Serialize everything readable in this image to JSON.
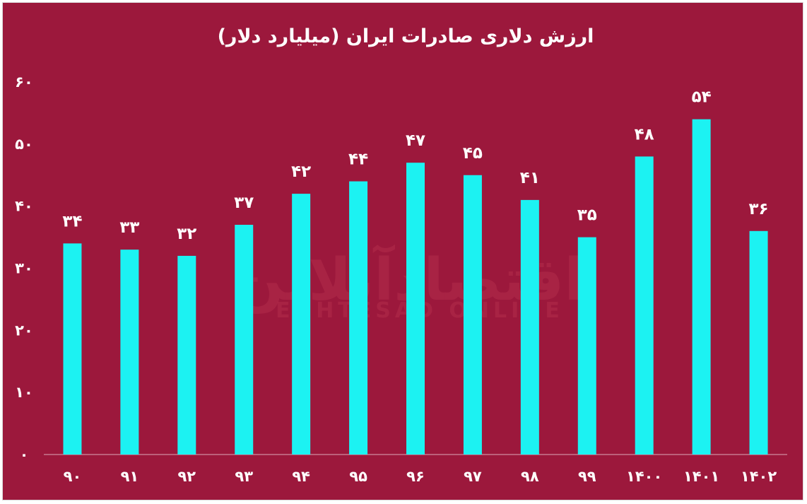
{
  "chart_data": {
    "type": "bar",
    "title": "ارزش دلاری صادرات ایران (میلیارد دلار)",
    "categories": [
      "۹۰",
      "۹۱",
      "۹۲",
      "۹۳",
      "۹۴",
      "۹۵",
      "۹۶",
      "۹۷",
      "۹۸",
      "۹۹",
      "۱۴۰۰",
      "۱۴۰۱",
      "۱۴۰۲"
    ],
    "values": [
      34,
      33,
      32,
      37,
      42,
      44,
      47,
      45,
      41,
      35,
      48,
      54,
      36
    ],
    "value_labels": [
      "۳۴",
      "۳۳",
      "۳۲",
      "۳۷",
      "۴۲",
      "۴۴",
      "۴۷",
      "۴۵",
      "۴۱",
      "۳۵",
      "۴۸",
      "۵۴",
      "۳۶"
    ],
    "ylim": [
      0,
      60
    ],
    "yticks": [
      0,
      10,
      20,
      30,
      40,
      50,
      60
    ],
    "ytick_labels": [
      "۰",
      "۱۰",
      "۲۰",
      "۳۰",
      "۴۰",
      "۵۰",
      "۶۰"
    ],
    "grid": false,
    "colors": {
      "background": "#9c183c",
      "bar": "#1cf2f2",
      "text": "#ffffff",
      "axis": "#cf8c9e"
    }
  },
  "watermark": {
    "brand_fa": "اقتصادآنلاین",
    "brand_en": "EGHTESAD ONLINE"
  }
}
